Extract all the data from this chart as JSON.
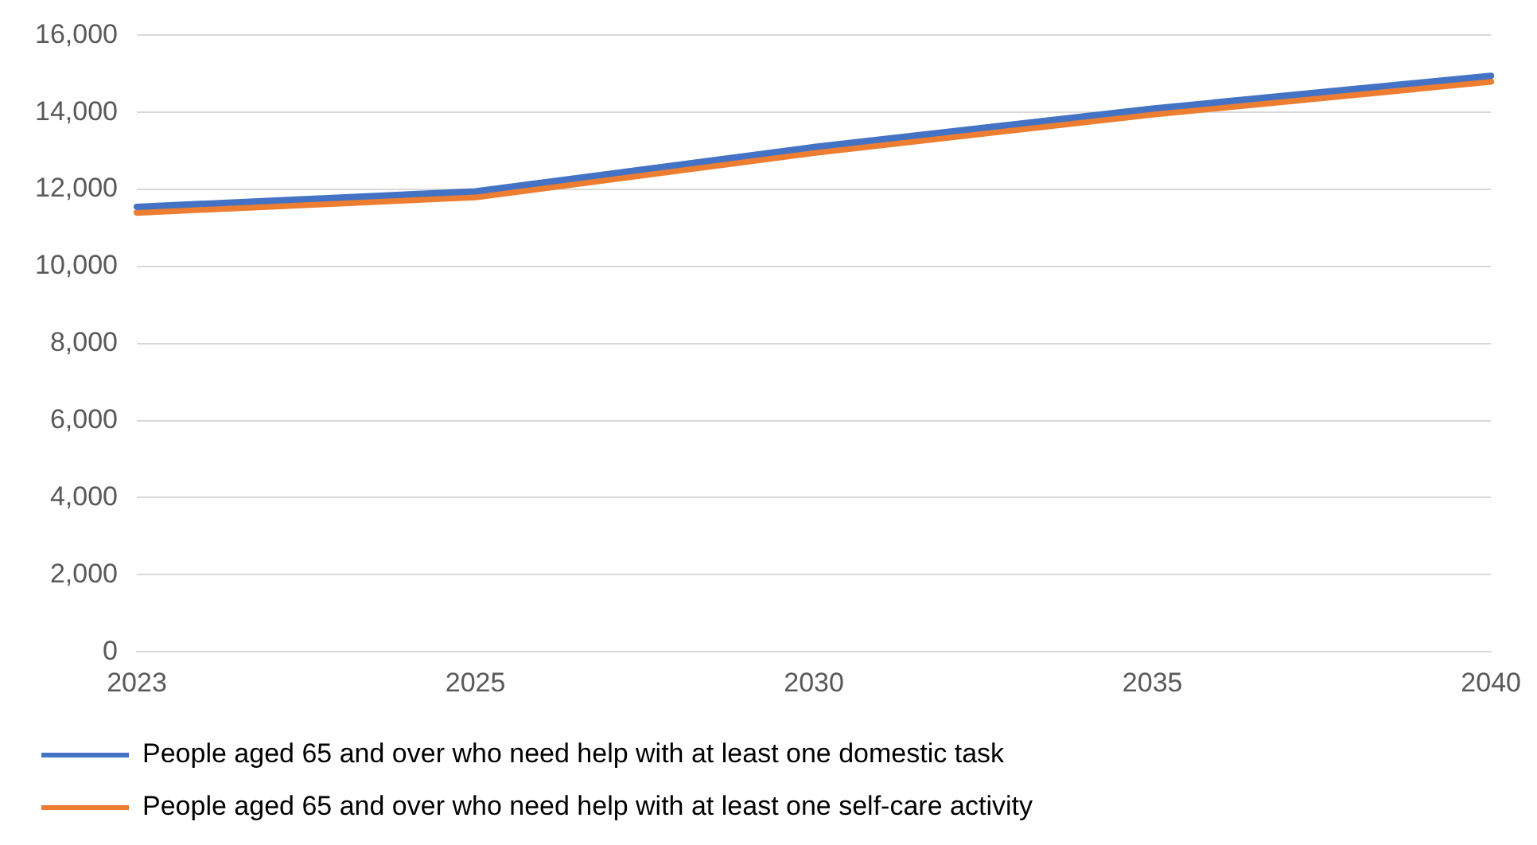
{
  "chart_data": {
    "type": "line",
    "categories": [
      "2023",
      "2025",
      "2030",
      "2035",
      "2040"
    ],
    "series": [
      {
        "name": "People aged 65 and over who need help with at least one domestic task",
        "color": "#4472c4",
        "values": [
          11550,
          11950,
          13100,
          14100,
          14950
        ]
      },
      {
        "name": "People aged 65 and over who need help with at least one self-care activity",
        "color": "#ed7d31",
        "values": [
          11400,
          11800,
          12950,
          13950,
          14800
        ]
      }
    ],
    "ylim": [
      0,
      16000
    ],
    "yticks": [
      {
        "value": 0,
        "label": "0"
      },
      {
        "value": 2000,
        "label": "2,000"
      },
      {
        "value": 4000,
        "label": "4,000"
      },
      {
        "value": 6000,
        "label": "6,000"
      },
      {
        "value": 8000,
        "label": "8,000"
      },
      {
        "value": 10000,
        "label": "10,000"
      },
      {
        "value": 12000,
        "label": "12,000"
      },
      {
        "value": 14000,
        "label": "14,000"
      },
      {
        "value": 16000,
        "label": "16,000"
      }
    ],
    "grid": "y",
    "legend": "bottom",
    "marker": "none",
    "line_style": "solid"
  }
}
